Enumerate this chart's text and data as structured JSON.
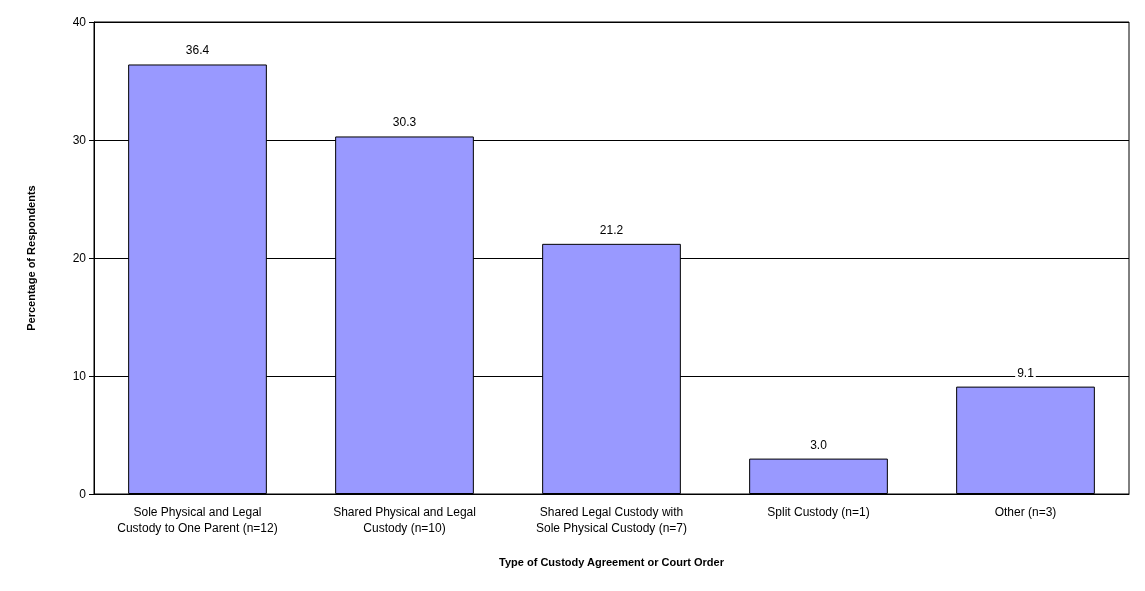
{
  "chart_data": {
    "type": "bar",
    "xlabel": "Type of Custody Agreement or Court Order",
    "ylabel": "Percentage of Respondents",
    "categories": [
      "Sole Physical and Legal\nCustody to One Parent (n=12)",
      "Shared Physical and Legal\nCustody (n=10)",
      "Shared Legal Custody with\nSole Physical Custody (n=7)",
      "Split Custody (n=1)",
      "Other (n=3)"
    ],
    "values": [
      36.4,
      30.3,
      21.2,
      3.0,
      9.1
    ],
    "value_labels": [
      "36.4",
      "30.3",
      "21.2",
      "3.0",
      "9.1"
    ],
    "color": "#9999ff",
    "ylim": [
      0,
      40
    ],
    "yticks": [
      0,
      10,
      20,
      30,
      40
    ],
    "grid": "y"
  }
}
